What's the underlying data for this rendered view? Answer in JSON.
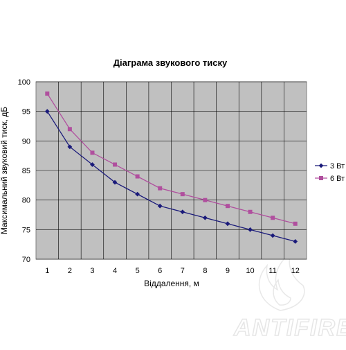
{
  "chart_data": {
    "type": "line",
    "title": "Діаграма звукового тиску",
    "xlabel": "Віддалення, м",
    "ylabel": "Максимальний звуковий тиск, дБ",
    "categories": [
      "1",
      "2",
      "3",
      "4",
      "5",
      "6",
      "7",
      "8",
      "9",
      "10",
      "11",
      "12"
    ],
    "ylim": [
      70,
      100
    ],
    "yticks": [
      70,
      75,
      80,
      85,
      90,
      95,
      100
    ],
    "grid": true,
    "legend_position": "right",
    "series": [
      {
        "name": "3 Вт",
        "color": "#1a1a7a",
        "marker": "diamond",
        "values": [
          95,
          89,
          86,
          83,
          81,
          79,
          78,
          77,
          76,
          75,
          74,
          73
        ]
      },
      {
        "name": "6 Вт",
        "color": "#b04f9e",
        "marker": "square",
        "values": [
          98,
          92,
          88,
          86,
          84,
          82,
          81,
          80,
          79,
          78,
          77,
          76
        ]
      }
    ]
  },
  "watermark": {
    "text": "ANTIFIRE"
  },
  "colors": {
    "plot_background": "#c0c0c0",
    "grid": "#000000"
  }
}
